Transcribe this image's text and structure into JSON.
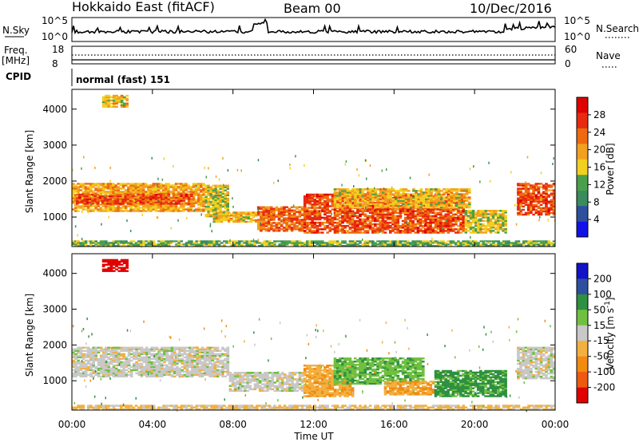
{
  "header": {
    "station": "Hokkaido East (fitACF)",
    "beam": "Beam 00",
    "date": "10/Dec/2016"
  },
  "noise_panel": {
    "left_label": "N.Sky",
    "right_label": "N.Search",
    "left_ticks": [
      "10^5",
      "10^0"
    ],
    "right_ticks": [
      "10^5",
      "10^0"
    ]
  },
  "freq_panel": {
    "left_label_1": "Freq.",
    "left_label_2": "[MHz]",
    "right_label": "Nave",
    "left_ticks": [
      "18",
      "8"
    ],
    "right_ticks": [
      "60",
      "0"
    ]
  },
  "cpid": {
    "label": "CPID",
    "value": "normal (fast) 151"
  },
  "axes": {
    "ylabel": "Slant Range [km]",
    "xlabel": "Time UT",
    "x_ticks": [
      "00:00",
      "04:00",
      "08:00",
      "12:00",
      "16:00",
      "20:00",
      "00:00"
    ],
    "y_ticks": [
      "4000",
      "3000",
      "2000",
      "1000"
    ]
  },
  "colors": {
    "power": [
      "#1212e8",
      "#2d4f9e",
      "#3a8c5c",
      "#4aa04a",
      "#f2d020",
      "#f2a020",
      "#ee6a10",
      "#e82a10",
      "#e00000"
    ],
    "velocity": [
      "#e00000",
      "#ee5a10",
      "#f28a10",
      "#f2b040",
      "#c8c8c8",
      "#70c040",
      "#2e9040",
      "#2d4f9e",
      "#1212c8"
    ],
    "velocity_missing": "#c8c8c8"
  },
  "chart_data": [
    {
      "type": "heatmap",
      "title": "",
      "xlabel": "Time UT",
      "ylabel": "Slant Range [km]",
      "colorbar_label": "Power [dB]",
      "colorbar_ticks": [
        "28",
        "24",
        "20",
        "16",
        "12",
        "8",
        "4"
      ],
      "xlim": [
        0,
        24
      ],
      "ylim": [
        180,
        4550
      ],
      "x_ticks": [
        "00:00",
        "04:00",
        "08:00",
        "12:00",
        "16:00",
        "20:00",
        "00:00"
      ],
      "y_ticks": [
        4000,
        3000,
        2000,
        1000
      ],
      "regions": [
        {
          "t0": 0.0,
          "t1": 6.6,
          "r0": 1150,
          "r1": 1950,
          "value": 22
        },
        {
          "t0": 0.2,
          "t1": 6.0,
          "r0": 1350,
          "r1": 1650,
          "value": 28
        },
        {
          "t0": 6.6,
          "t1": 7.8,
          "r0": 1000,
          "r1": 1900,
          "value": 18
        },
        {
          "t0": 7.0,
          "t1": 9.2,
          "r0": 850,
          "r1": 1150,
          "value": 20
        },
        {
          "t0": 9.2,
          "t1": 11.5,
          "r0": 600,
          "r1": 1300,
          "value": 26
        },
        {
          "t0": 11.5,
          "t1": 19.5,
          "r0": 550,
          "r1": 1650,
          "value": 28
        },
        {
          "t0": 13.0,
          "t1": 19.8,
          "r0": 1250,
          "r1": 1800,
          "value": 20
        },
        {
          "t0": 19.5,
          "t1": 21.6,
          "r0": 550,
          "r1": 1200,
          "value": 18
        },
        {
          "t0": 22.1,
          "t1": 24.0,
          "r0": 1050,
          "r1": 1950,
          "value": 28
        },
        {
          "t0": 1.5,
          "t1": 2.8,
          "r0": 4050,
          "r1": 4400,
          "value": 20
        },
        {
          "t0": 0.0,
          "t1": 24.0,
          "r0": 180,
          "r1": 350,
          "value": 14
        }
      ]
    },
    {
      "type": "heatmap",
      "title": "",
      "xlabel": "Time UT",
      "ylabel": "Slant Range [km]",
      "colorbar_label": "Velocity [m s^-1]",
      "colorbar_ticks": [
        "200",
        "100",
        "50",
        "15",
        "-15",
        "-50",
        "-100",
        "-200"
      ],
      "xlim": [
        0,
        24
      ],
      "ylim": [
        180,
        4550
      ],
      "x_ticks": [
        "00:00",
        "04:00",
        "08:00",
        "12:00",
        "16:00",
        "20:00",
        "00:00"
      ],
      "y_ticks": [
        4000,
        3000,
        2000,
        1000
      ],
      "regions": [
        {
          "t0": 0.0,
          "t1": 7.8,
          "r0": 1100,
          "r1": 1950,
          "value": 0
        },
        {
          "t0": 7.8,
          "t1": 11.5,
          "r0": 700,
          "r1": 1250,
          "value": 0
        },
        {
          "t0": 11.5,
          "t1": 14.0,
          "r0": 550,
          "r1": 1450,
          "value": -40
        },
        {
          "t0": 13.0,
          "t1": 17.5,
          "r0": 900,
          "r1": 1650,
          "value": 40
        },
        {
          "t0": 15.5,
          "t1": 18.0,
          "r0": 600,
          "r1": 1000,
          "value": -45
        },
        {
          "t0": 18.0,
          "t1": 21.6,
          "r0": 550,
          "r1": 1300,
          "value": 60
        },
        {
          "t0": 22.1,
          "t1": 24.0,
          "r0": 1050,
          "r1": 1950,
          "value": 0
        },
        {
          "t0": 1.5,
          "t1": 2.8,
          "r0": 4050,
          "r1": 4400,
          "value": -220
        },
        {
          "t0": 0.0,
          "t1": 24.0,
          "r0": 180,
          "r1": 330,
          "value": -20
        }
      ]
    }
  ]
}
